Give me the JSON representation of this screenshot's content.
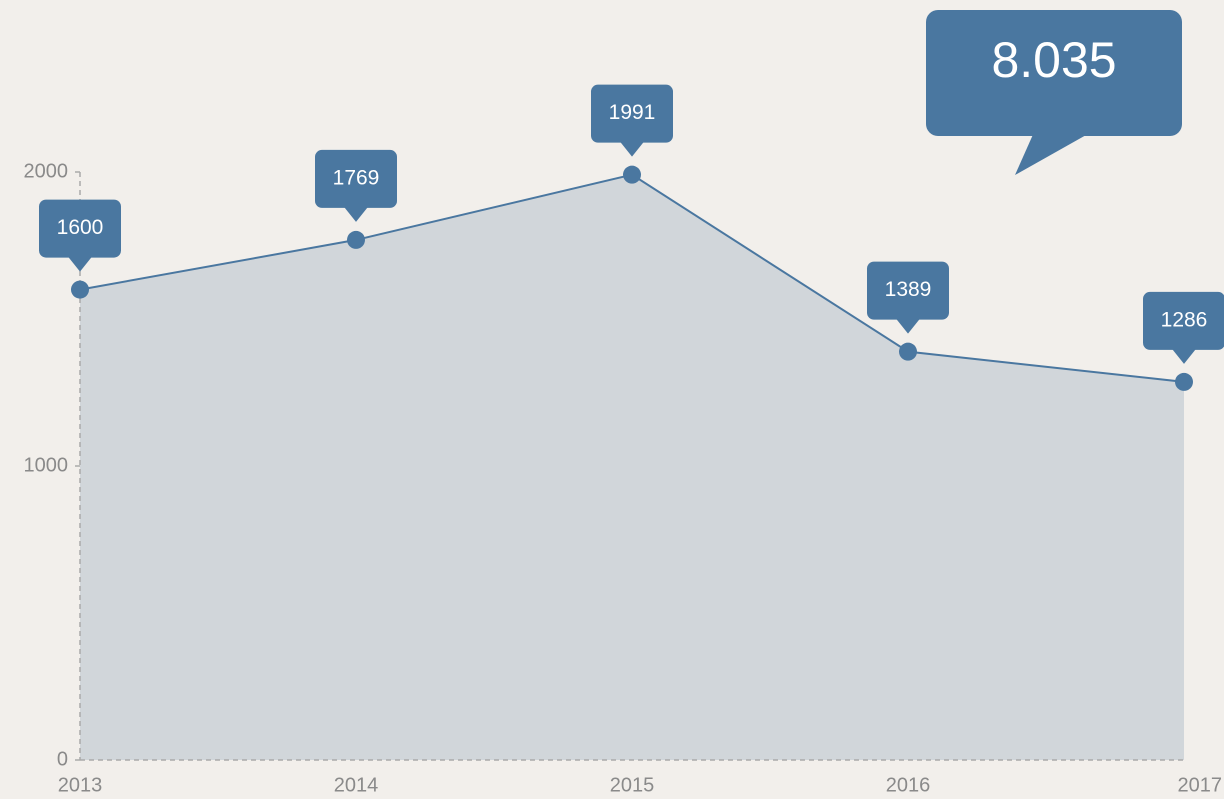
{
  "chart_data": {
    "type": "area",
    "categories": [
      "2013",
      "2014",
      "2015",
      "2016",
      "2017"
    ],
    "values": [
      1600,
      1769,
      1991,
      1389,
      1286
    ],
    "color": "#4a77a0",
    "fill": "#d1d6da",
    "ylim": [
      0,
      2000
    ],
    "yticks": [
      0,
      1000,
      2000
    ],
    "annotation": "8.035"
  }
}
